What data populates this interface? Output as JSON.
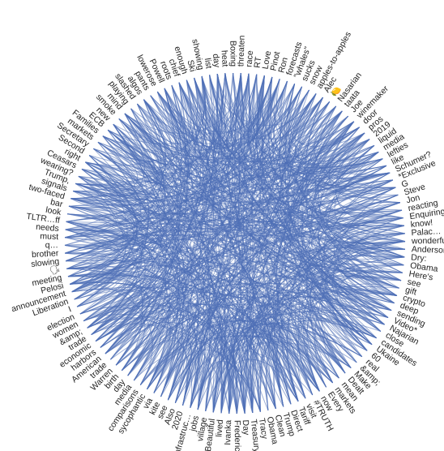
{
  "chart_data": {
    "type": "hierarchical-edge-bundling",
    "edge_color": "#4e6fb7",
    "label_color": "#222222",
    "background": "#ffffff",
    "nodes": [
      "threaten",
      "race",
      "RT",
      "Love",
      "Pinot",
      "Ron",
      "forecasts",
      "\"whales\"",
      "sucks",
      "snow",
      "apples-to-apples",
      "Alec",
      "🍋",
      "Nasarian",
      "taata",
      "Joe",
      "winemaker",
      "door",
      "pros",
      "2019",
      "liquid",
      "media",
      "lefties",
      "like",
      "Schumer?",
      "*Exclusive",
      "G",
      "Steve",
      "Jon",
      "reacting",
      "Enquiring",
      "know!",
      "Palac…",
      "wonderful",
      "Anderson",
      "Dry:",
      "Obama",
      "Here's",
      "see",
      "gift",
      "crypto",
      "deep",
      "sending",
      "Video*",
      "Najarian",
      "close",
      "candidates",
      "Ukaine",
      "60",
      "real",
      "&amp;",
      "Make",
      "Dealt",
      "mean",
      "markets",
      "Every",
      "now",
      "#TRUTH",
      "visit",
      "Tariff",
      "Direct",
      "Trump",
      "Clean",
      "Obama",
      "Tracy",
      "Treasury",
      "Day",
      "Frederic",
      "Ivanka",
      "lived",
      "Beautiful",
      "village",
      "jobs",
      "infrastruc…",
      "2020",
      "Also",
      "see",
      "kite",
      "via",
      "sycophantic",
      "comparisons",
      "media",
      "day",
      "birth",
      "Warren",
      "trade",
      "American",
      "harbors",
      "economic",
      "trade",
      "&amp;",
      "women",
      "election",
      "I",
      "Liberation",
      "announcement",
      "Pelosi",
      "meeting",
      "🗣",
      "slowing",
      "brother",
      "q…",
      "must",
      "needs",
      "TLTR…ff",
      "look",
      "bar",
      "two-faced",
      "signals",
      "Trump,",
      "wearing?",
      "Ceasars",
      "right",
      "Second",
      "Secretary",
      "markets",
      "Families",
      "ECB",
      "new",
      "smoke",
      "mind",
      "playing",
      "slashed",
      "algos",
      "pants",
      "lowerose",
      "Powell",
      "roots",
      "chief",
      "enough",
      "Ski",
      "showing",
      "list",
      "day",
      "heat",
      "Boxing"
    ]
  }
}
